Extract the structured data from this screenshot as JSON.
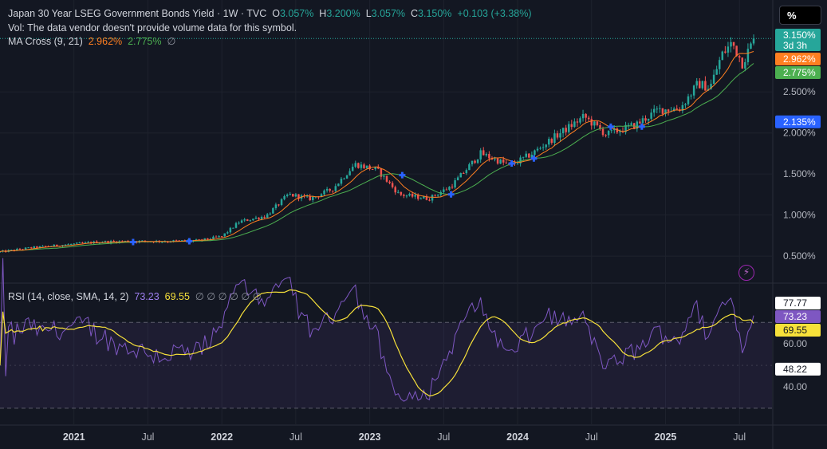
{
  "header": {
    "symbol_title": "Japan 30 Year LSEG Government Bonds Yield · 1W · TVC",
    "open_label": "O",
    "open_value": "3.057%",
    "high_label": "H",
    "high_value": "3.200%",
    "low_label": "L",
    "low_value": "3.057%",
    "close_label": "C",
    "close_value": "3.150%",
    "change": "+0.103 (+3.38%)",
    "volume_note": "Vol: The data vendor doesn't provide volume data for this symbol."
  },
  "toolbar": {
    "scale_button": "%"
  },
  "ma_indicator": {
    "name": "MA Cross (9, 21)",
    "fast_value": "2.962%",
    "slow_value": "2.775%",
    "null_marker": "∅"
  },
  "rsi_indicator": {
    "name": "RSI (14, close, SMA, 14, 2)",
    "rsi_value": "73.23",
    "sma_value": "69.55",
    "null_markers": [
      "∅",
      "∅",
      "∅",
      "∅",
      "∅",
      "∅"
    ]
  },
  "colors": {
    "background": "#131722",
    "up": "#26a69a",
    "down": "#ef5350",
    "ma_fast": "#ff7f21",
    "ma_slow": "#4caf50",
    "rsi": "#7e57c2",
    "rsi_sma": "#f7e13a",
    "cross_marker": "#2962ff"
  },
  "chart_data": [
    {
      "type": "candlestick",
      "title": "Japan 30 Year LSEG Government Bonds Yield · 1W · TVC",
      "x_tick_labels": [
        "2021",
        "Jul",
        "2022",
        "Jul",
        "2023",
        "Jul",
        "2024",
        "Jul",
        "2025",
        "Jul"
      ],
      "x_ticks": [
        2021.0,
        2021.5,
        2022.0,
        2022.5,
        2023.0,
        2023.5,
        2024.0,
        2024.5,
        2025.0,
        2025.5
      ],
      "xlim": [
        2020.5,
        2025.72
      ],
      "y_tick_labels": [
        "0.500%",
        "1.000%",
        "1.500%",
        "2.000%",
        "2.500%"
      ],
      "y_ticks": [
        0.5,
        1.0,
        1.5,
        2.0,
        2.5
      ],
      "ylim": [
        0.2,
        3.25
      ],
      "price_labels": [
        {
          "text": "3.150%",
          "sub": "3d 3h",
          "value": 3.15,
          "color": "#26a69a"
        },
        {
          "text": "2.962%",
          "value": 2.962,
          "color": "#ff7f21"
        },
        {
          "text": "2.775%",
          "value": 2.775,
          "color": "#4caf50"
        },
        {
          "text": "2.135%",
          "value": 2.135,
          "color": "#2962ff"
        }
      ],
      "last_close": 3.15,
      "price_anchors": [
        [
          2020.5,
          0.55
        ],
        [
          2020.7,
          0.6
        ],
        [
          2020.95,
          0.64
        ],
        [
          2021.15,
          0.67
        ],
        [
          2021.35,
          0.68
        ],
        [
          2021.6,
          0.68
        ],
        [
          2021.85,
          0.69
        ],
        [
          2022.0,
          0.74
        ],
        [
          2022.12,
          0.92
        ],
        [
          2022.3,
          0.99
        ],
        [
          2022.45,
          1.25
        ],
        [
          2022.6,
          1.2
        ],
        [
          2022.75,
          1.32
        ],
        [
          2022.9,
          1.62
        ],
        [
          2023.05,
          1.55
        ],
        [
          2023.2,
          1.25
        ],
        [
          2023.4,
          1.2
        ],
        [
          2023.55,
          1.35
        ],
        [
          2023.75,
          1.75
        ],
        [
          2023.95,
          1.6
        ],
        [
          2024.1,
          1.75
        ],
        [
          2024.25,
          1.95
        ],
        [
          2024.45,
          2.2
        ],
        [
          2024.6,
          1.98
        ],
        [
          2024.8,
          2.1
        ],
        [
          2024.95,
          2.28
        ],
        [
          2025.1,
          2.3
        ],
        [
          2025.22,
          2.6
        ],
        [
          2025.3,
          2.55
        ],
        [
          2025.38,
          2.95
        ],
        [
          2025.45,
          3.1
        ],
        [
          2025.52,
          2.85
        ],
        [
          2025.6,
          3.15
        ]
      ],
      "ma_cross_markers": [
        2021.4,
        2021.78,
        2023.22,
        2023.55,
        2023.96,
        2024.11,
        2024.63,
        2024.84
      ],
      "ma_fast_period": 9,
      "ma_slow_period": 21
    },
    {
      "type": "line",
      "title": "RSI (14, close, SMA, 14, 2)",
      "y_tick_labels": [
        "40.00",
        "60.00"
      ],
      "y_ticks": [
        40,
        60
      ],
      "bands": [
        30,
        50,
        70
      ],
      "ylim": [
        24,
        82
      ],
      "value_labels": [
        {
          "text": "77.77",
          "value": 77.77,
          "style": "white"
        },
        {
          "text": "73.23",
          "value": 73.23,
          "style": "purple"
        },
        {
          "text": "69.55",
          "value": 69.55,
          "style": "yellow"
        },
        {
          "text": "48.22",
          "value": 48.22,
          "style": "white"
        }
      ],
      "series": [
        {
          "key": "rsi",
          "color": "#7e57c2"
        },
        {
          "key": "sma",
          "color": "#f7e13a"
        }
      ]
    }
  ]
}
